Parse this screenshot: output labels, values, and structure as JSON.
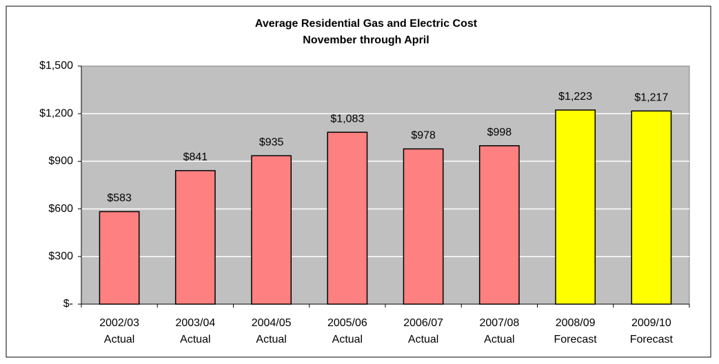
{
  "chart_data": {
    "type": "bar",
    "title": "Average Residential Gas and Electric Cost",
    "subtitle": "November through April",
    "categories": [
      "2002/03\nActual",
      "2003/04\nActual",
      "2004/05\nActual",
      "2005/06\nActual",
      "2006/07\nActual",
      "2007/08\nActual",
      "2008/09\nForecast",
      "2009/10\nForecast"
    ],
    "values": [
      583,
      841,
      935,
      1083,
      978,
      998,
      1223,
      1217
    ],
    "value_labels": [
      "$583",
      "$841",
      "$935",
      "$1,083",
      "$978",
      "$998",
      "$1,223",
      "$1,217"
    ],
    "colors": [
      "#ff8080",
      "#ff8080",
      "#ff8080",
      "#ff8080",
      "#ff8080",
      "#ff8080",
      "#ffff00",
      "#ffff00"
    ],
    "ylim": [
      0,
      1500
    ],
    "yticks": [
      {
        "value": 0,
        "label": "$-"
      },
      {
        "value": 300,
        "label": "$300"
      },
      {
        "value": 600,
        "label": "$600"
      },
      {
        "value": 900,
        "label": "$900"
      },
      {
        "value": 1200,
        "label": "$1,200"
      },
      {
        "value": 1500,
        "label": "$1,500"
      }
    ],
    "grid": true
  }
}
